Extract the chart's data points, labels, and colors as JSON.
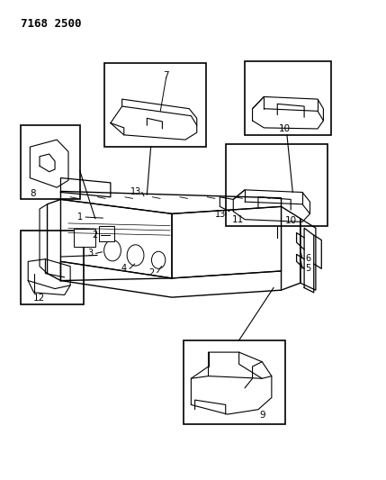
{
  "title_code": "7168 2500",
  "bg_color": "#ffffff",
  "line_color": "#000000",
  "fig_width": 4.29,
  "fig_height": 5.33,
  "dpi": 100,
  "title_fontsize": 9,
  "label_fontsize": 7.5
}
